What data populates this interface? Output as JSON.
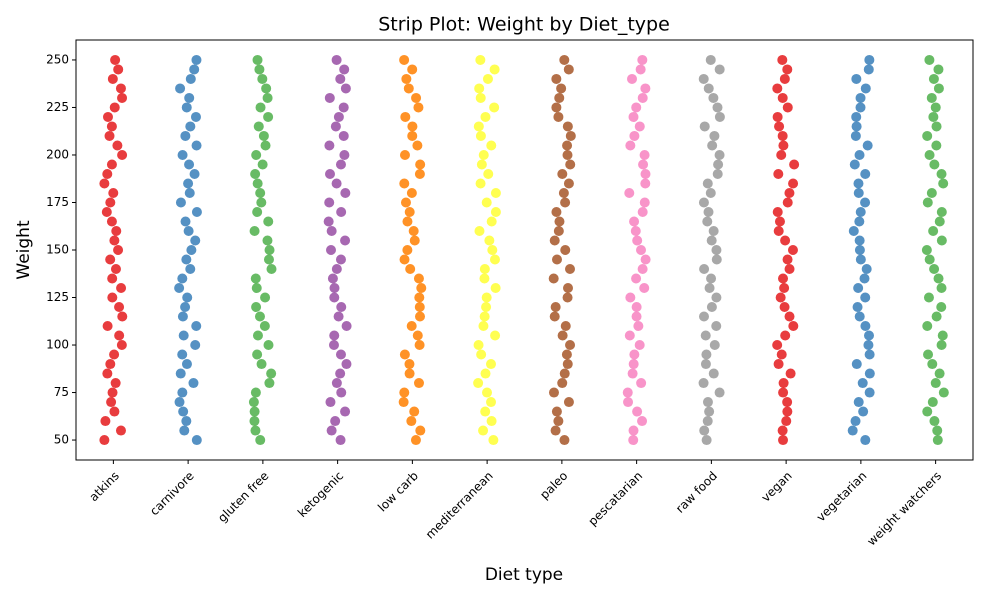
{
  "chart_data": {
    "type": "strip",
    "title": "Strip Plot: Weight by Diet_type",
    "x_label": "Diet type",
    "y_label": "Weight",
    "categories": [
      "atkins",
      "carnivore",
      "gluten free",
      "ketogenic",
      "low carb",
      "mediterranean",
      "paleo",
      "pescatarian",
      "raw food",
      "vegan",
      "vegetarian",
      "weight watchers"
    ],
    "colors": [
      "#e41a1c",
      "#377eb8",
      "#4daf4a",
      "#984ea3",
      "#ff7f00",
      "#ffff33",
      "#a65628",
      "#f781bf",
      "#999999",
      "#e41a1c",
      "#377eb8",
      "#4daf4a"
    ],
    "values": [
      [
        50,
        55,
        60,
        65,
        70,
        75,
        80,
        85,
        90,
        95,
        100,
        105,
        110,
        115,
        120,
        125,
        130,
        135,
        140,
        145,
        150,
        155,
        160,
        165,
        170,
        175,
        180,
        185,
        190,
        195,
        200,
        205,
        210,
        215,
        220,
        225,
        230,
        235,
        240,
        245,
        250
      ],
      [
        50,
        55,
        60,
        65,
        70,
        75,
        80,
        85,
        90,
        95,
        100,
        105,
        110,
        115,
        120,
        125,
        130,
        135,
        140,
        145,
        150,
        155,
        160,
        165,
        170,
        175,
        180,
        185,
        190,
        195,
        200,
        205,
        210,
        215,
        220,
        225,
        230,
        235,
        240,
        245,
        250
      ],
      [
        50,
        55,
        60,
        65,
        70,
        75,
        80,
        85,
        90,
        95,
        100,
        105,
        110,
        115,
        120,
        125,
        130,
        135,
        140,
        145,
        150,
        155,
        160,
        165,
        170,
        175,
        180,
        185,
        190,
        195,
        200,
        205,
        210,
        215,
        220,
        225,
        230,
        235,
        240,
        245,
        250
      ],
      [
        50,
        55,
        60,
        65,
        70,
        75,
        80,
        85,
        90,
        95,
        100,
        105,
        110,
        115,
        120,
        125,
        130,
        135,
        140,
        145,
        150,
        155,
        160,
        165,
        170,
        175,
        180,
        185,
        190,
        195,
        200,
        205,
        210,
        215,
        220,
        225,
        230,
        235,
        240,
        245,
        250
      ],
      [
        50,
        55,
        60,
        65,
        70,
        75,
        80,
        85,
        90,
        95,
        100,
        105,
        110,
        115,
        120,
        125,
        130,
        135,
        140,
        145,
        150,
        155,
        160,
        165,
        170,
        175,
        180,
        185,
        190,
        195,
        200,
        205,
        210,
        215,
        220,
        225,
        230,
        235,
        240,
        245,
        250
      ],
      [
        50,
        55,
        60,
        65,
        70,
        75,
        80,
        85,
        90,
        95,
        100,
        105,
        110,
        115,
        120,
        125,
        130,
        135,
        140,
        145,
        150,
        155,
        160,
        165,
        170,
        175,
        180,
        185,
        190,
        195,
        200,
        205,
        210,
        215,
        220,
        225,
        230,
        235,
        240,
        245,
        250
      ],
      [
        50,
        55,
        60,
        65,
        70,
        75,
        80,
        85,
        90,
        95,
        100,
        105,
        110,
        115,
        120,
        125,
        130,
        135,
        140,
        145,
        150,
        155,
        160,
        165,
        170,
        175,
        180,
        185,
        190,
        195,
        200,
        205,
        210,
        215,
        220,
        225,
        230,
        235,
        240,
        245,
        250
      ],
      [
        50,
        55,
        60,
        65,
        70,
        75,
        80,
        85,
        90,
        95,
        100,
        105,
        110,
        115,
        120,
        125,
        130,
        135,
        140,
        145,
        150,
        155,
        160,
        165,
        170,
        175,
        180,
        185,
        190,
        195,
        200,
        205,
        210,
        215,
        220,
        225,
        230,
        235,
        240,
        245,
        250
      ],
      [
        50,
        55,
        60,
        65,
        70,
        75,
        80,
        85,
        90,
        95,
        100,
        105,
        110,
        115,
        120,
        125,
        130,
        135,
        140,
        145,
        150,
        155,
        160,
        165,
        170,
        175,
        180,
        185,
        190,
        195,
        200,
        205,
        210,
        215,
        220,
        225,
        230,
        235,
        240,
        245,
        250
      ],
      [
        50,
        55,
        60,
        65,
        70,
        75,
        80,
        85,
        90,
        95,
        100,
        105,
        110,
        115,
        120,
        125,
        130,
        135,
        140,
        145,
        150,
        155,
        160,
        165,
        170,
        175,
        180,
        185,
        190,
        195,
        200,
        205,
        210,
        215,
        220,
        225,
        230,
        235,
        240,
        245,
        250
      ],
      [
        50,
        55,
        60,
        65,
        70,
        75,
        80,
        85,
        90,
        95,
        100,
        105,
        110,
        115,
        120,
        125,
        130,
        135,
        140,
        145,
        150,
        155,
        160,
        165,
        170,
        175,
        180,
        185,
        190,
        195,
        200,
        205,
        210,
        215,
        220,
        225,
        230,
        235,
        240,
        245,
        250
      ],
      [
        50,
        55,
        60,
        65,
        70,
        75,
        80,
        85,
        90,
        95,
        100,
        105,
        110,
        115,
        120,
        125,
        130,
        135,
        140,
        145,
        150,
        155,
        160,
        165,
        170,
        175,
        180,
        185,
        190,
        195,
        200,
        205,
        210,
        215,
        220,
        225,
        230,
        235,
        240,
        245,
        250
      ]
    ],
    "ylim": [
      39.5,
      260.5
    ],
    "yticks": [
      50,
      75,
      100,
      125,
      150,
      175,
      200,
      225,
      250
    ],
    "grid": false
  }
}
